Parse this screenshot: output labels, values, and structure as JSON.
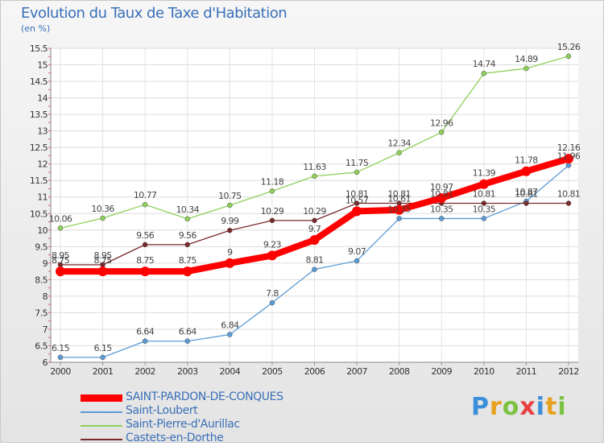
{
  "chart_data": {
    "type": "line",
    "title": "Evolution du Taux de Taxe d'Habitation",
    "subtitle": "(en %)",
    "x": [
      "2000",
      "2001",
      "2002",
      "2003",
      "2004",
      "2005",
      "2006",
      "2007",
      "2008",
      "2009",
      "2010",
      "2011",
      "2012"
    ],
    "ylim": [
      6,
      15.5
    ],
    "y_ticks": [
      "6",
      "6.5",
      "7",
      "7.5",
      "8",
      "8.5",
      "9",
      "9.5",
      "10",
      "10.5",
      "11",
      "11.5",
      "12",
      "12.5",
      "13",
      "13.5",
      "14",
      "14.5",
      "15",
      "15.5"
    ],
    "grid": true,
    "legend_position": "bottom-left",
    "series": [
      {
        "name": "SAINT-PARDON-DE-CONQUES",
        "color": "#ff0000",
        "values": [
          8.75,
          8.75,
          8.75,
          8.75,
          9,
          9.23,
          9.7,
          10.57,
          10.61,
          10.97,
          11.39,
          11.78,
          12.16
        ]
      },
      {
        "name": "Saint-Loubert",
        "color": "#5b9bd5",
        "values": [
          6.15,
          6.15,
          6.64,
          6.64,
          6.84,
          7.8,
          8.81,
          9.07,
          10.35,
          10.35,
          10.35,
          10.87,
          11.96
        ]
      },
      {
        "name": "Saint-Pierre-d'Aurillac",
        "color": "#8fd05a",
        "values": [
          10.06,
          10.36,
          10.77,
          10.34,
          10.75,
          11.18,
          11.63,
          11.75,
          12.34,
          12.96,
          14.74,
          14.89,
          15.26
        ]
      },
      {
        "name": "Castets-en-Dorthe",
        "color": "#7a2a2a",
        "values": [
          8.95,
          8.95,
          9.56,
          9.56,
          9.99,
          10.29,
          10.29,
          10.81,
          10.81,
          10.81,
          10.81,
          10.81,
          10.81
        ]
      }
    ],
    "data_labels": [
      [
        "8.75",
        "8.75",
        "8.75",
        "8.75",
        "9",
        "9.23",
        "9.7",
        "10.57",
        "10.61",
        "10.97",
        "11.39",
        "11.78",
        "12.16"
      ],
      [
        "6.15",
        "6.15",
        "6.64",
        "6.64",
        "6.84",
        "7.8",
        "8.81",
        "9.07",
        "10.35",
        "10.35",
        "10.35",
        "10.87",
        "11.96"
      ],
      [
        "10.06",
        "10.36",
        "10.77",
        "10.34",
        "10.75",
        "11.18",
        "11.63",
        "11.75",
        "12.34",
        "12.96",
        "14.74",
        "14.89",
        "15.26"
      ],
      [
        "8.95",
        "8.95",
        "9.56",
        "9.56",
        "9.99",
        "10.29",
        "10.29",
        "10.81",
        "10.81",
        "10.81",
        "10.81",
        "10.81",
        "10.81"
      ]
    ]
  },
  "logo": {
    "letters": [
      "P",
      "r",
      "o",
      "x",
      "i",
      "t",
      "i"
    ],
    "colors": [
      "#3c8fd8",
      "#e8a020",
      "#7cc242",
      "#e84040",
      "#3c8fd8",
      "#e8a020",
      "#7cc242"
    ]
  }
}
